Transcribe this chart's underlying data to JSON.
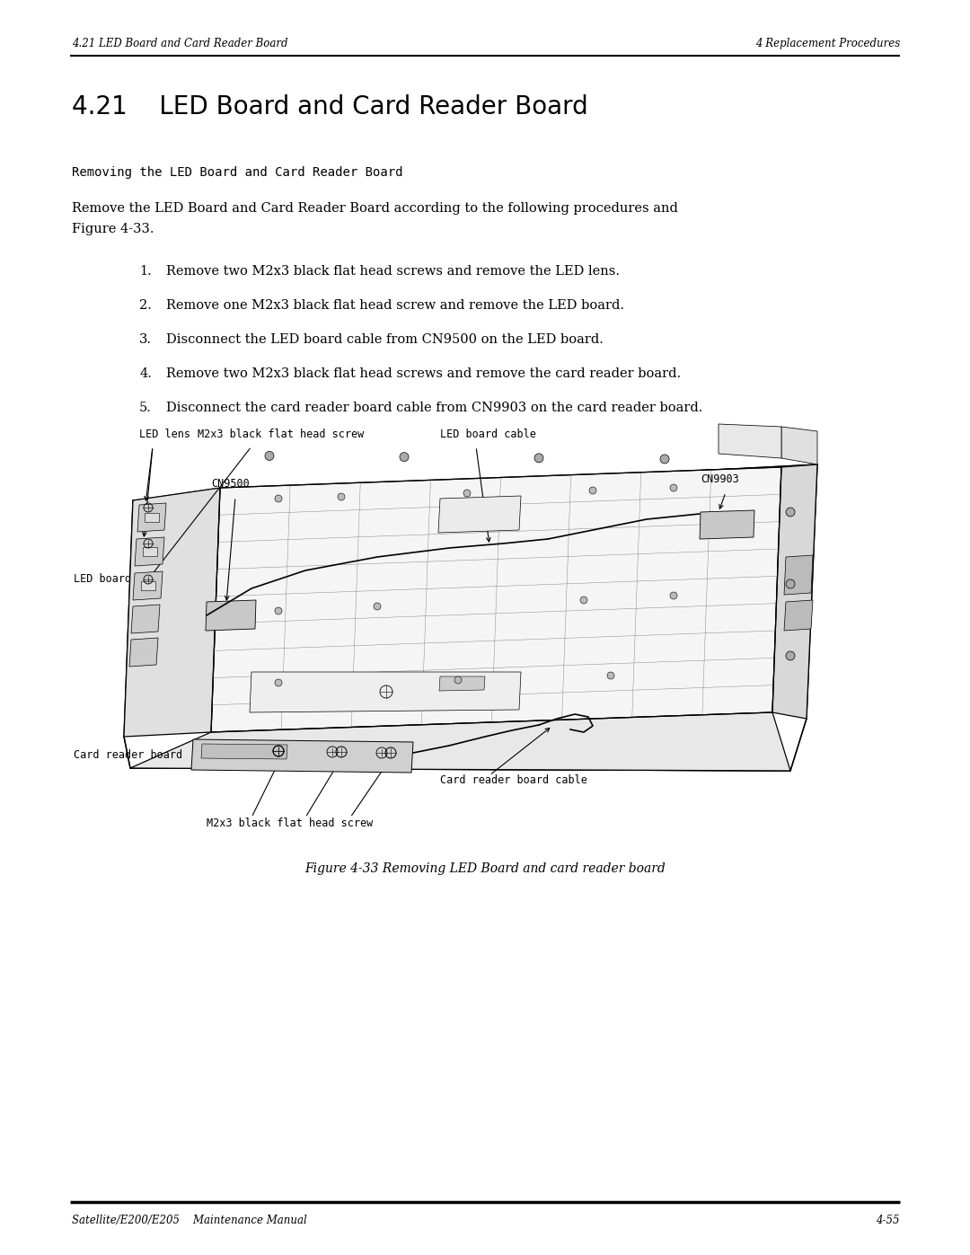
{
  "page_width": 10.8,
  "page_height": 13.97,
  "bg_color": "#ffffff",
  "header_left": "4.21 LED Board and Card Reader Board",
  "header_right": "4 Replacement Procedures",
  "footer_left": "Satellite/E200/E205    Maintenance Manual",
  "footer_right": "4-55",
  "header_font_size": 8.5,
  "footer_font_size": 8.5,
  "section_title": "4.21    LED Board and Card Reader Board",
  "section_title_font_size": 20,
  "subsection_title": "Removing the LED Board and Card Reader Board",
  "subsection_font_size": 10,
  "intro_line1": "Remove the LED Board and Card Reader Board according to the following procedures and",
  "intro_line2": "Figure 4-33.",
  "body_font_size": 10.5,
  "steps": [
    "Remove two M2x3 black flat head screws and remove the LED lens.",
    "Remove one M2x3 black flat head screw and remove the LED board.",
    "Disconnect the LED board cable from CN9500 on the LED board.",
    "Remove two M2x3 black flat head screws and remove the card reader board.",
    "Disconnect the card reader board cable from CN9903 on the card reader board."
  ],
  "figure_caption": "Figure 4-33 Removing LED Board and card reader board",
  "figure_caption_font_size": 10,
  "label_font_size": 8.5
}
